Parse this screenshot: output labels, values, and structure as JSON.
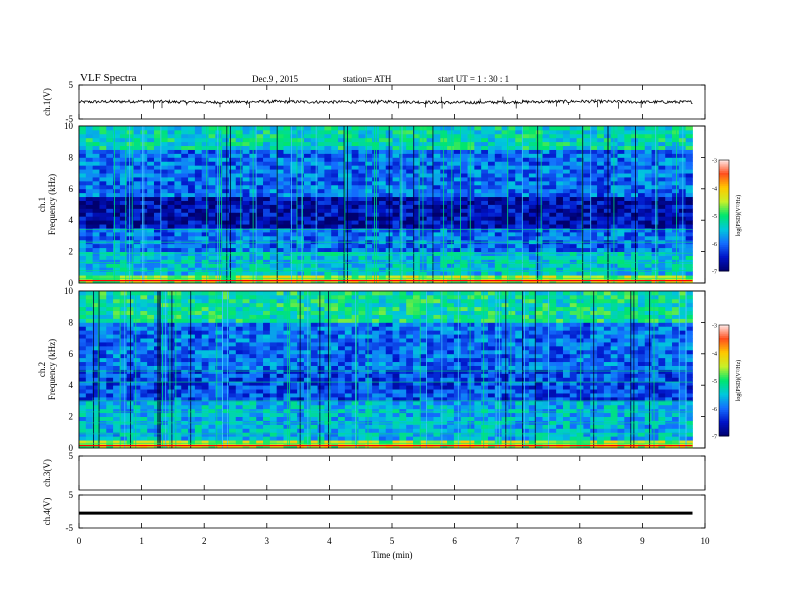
{
  "header": {
    "title": "VLF  Spectra",
    "date": "Dec.9  , 2015",
    "station": "station= ATH",
    "start": "start  UT  =   1  : 30 : 1"
  },
  "colors": {
    "low": "#000080",
    "mid": "#1e90ff",
    "high": "#00e676",
    "peak": "#ffeb3b",
    "max": "#ff0000",
    "trace": "#000000"
  },
  "chart_data": [
    {
      "type": "line",
      "name": "ch1-waveform",
      "ylabel": "ch.1(V)",
      "ylim": [
        -5,
        5
      ],
      "yticks": [
        "5",
        "-5"
      ],
      "x": [
        0,
        1,
        2,
        3,
        4,
        5,
        6,
        7,
        8,
        9,
        9.8
      ],
      "values": [
        0.0,
        0.2,
        -0.1,
        0.1,
        0.0,
        0.1,
        -0.2,
        0.0,
        0.2,
        0.0,
        0.0
      ]
    },
    {
      "type": "heatmap",
      "name": "ch1-spectrogram",
      "ylabel": "ch.1\nFrequency  (kHz)",
      "ylim": [
        0,
        10
      ],
      "yticks": [
        "0",
        "2",
        "4",
        "6",
        "8",
        "10"
      ],
      "colorbar": {
        "label": "log(PSD)(V²/Hz)",
        "ticks": [
          "-3",
          "-4",
          "-5",
          "-6",
          "-7"
        ],
        "range": [
          -7,
          -3
        ]
      },
      "frequency_bands_kHz": [
        {
          "from": 0,
          "to": 0.6,
          "level": -4.5
        },
        {
          "from": 0.6,
          "to": 2.0,
          "level": -5.5
        },
        {
          "from": 2.0,
          "to": 3.5,
          "level": -6.0
        },
        {
          "from": 3.5,
          "to": 5.5,
          "level": -6.7
        },
        {
          "from": 5.5,
          "to": 8.5,
          "level": -6.0
        },
        {
          "from": 8.5,
          "to": 10,
          "level": -5.3
        }
      ]
    },
    {
      "type": "heatmap",
      "name": "ch2-spectrogram",
      "ylabel": "ch.2\nFrequency  (kHz)",
      "ylim": [
        0,
        10
      ],
      "yticks": [
        "0",
        "2",
        "4",
        "6",
        "8",
        "10"
      ],
      "colorbar": {
        "label": "log(PSD)(V²/Hz)",
        "ticks": [
          "-3",
          "-4",
          "-5",
          "-6",
          "-7"
        ],
        "range": [
          -7,
          -3
        ]
      },
      "frequency_bands_kHz": [
        {
          "from": 0,
          "to": 0.5,
          "level": -4.5
        },
        {
          "from": 0.5,
          "to": 3.0,
          "level": -5.6
        },
        {
          "from": 3.0,
          "to": 5.0,
          "level": -6.2
        },
        {
          "from": 5.0,
          "to": 8.0,
          "level": -6.0
        },
        {
          "from": 8.0,
          "to": 10,
          "level": -5.2
        }
      ]
    },
    {
      "type": "line",
      "name": "ch3-waveform",
      "ylabel": "ch.3(V)",
      "ylim": [
        -5,
        5
      ],
      "yticks": [
        "5"
      ],
      "x": [],
      "values": []
    },
    {
      "type": "line",
      "name": "ch4-waveform",
      "ylabel": "ch.4(V)",
      "ylim": [
        -5,
        5
      ],
      "yticks": [
        "5",
        "-5"
      ],
      "x": [
        0,
        9.8
      ],
      "values": [
        -0.5,
        -0.5
      ]
    }
  ],
  "xaxis": {
    "label": "Time  (min)",
    "xlim": [
      0,
      10
    ],
    "ticks": [
      "0",
      "1",
      "2",
      "3",
      "4",
      "5",
      "6",
      "7",
      "8",
      "9",
      "10"
    ]
  }
}
